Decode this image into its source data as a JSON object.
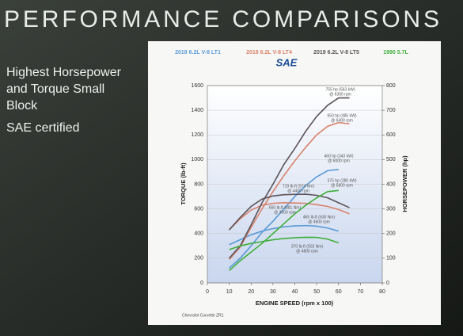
{
  "slide": {
    "title": "PERFORMANCE COMPARISONS",
    "bullets": [
      "Highest Horsepower",
      "and Torque Small",
      "Block",
      "SAE certified"
    ]
  },
  "chart_data": {
    "type": "line",
    "x_label": "ENGINE SPEED (rpm x 100)",
    "y_label": "TORQUE (lb-ft)",
    "y2_label": "HORSEPOWER (hp)",
    "logo": "SAE",
    "footnote": "Chevrolet Corvette ZR1",
    "x": [
      10,
      15,
      20,
      25,
      30,
      35,
      40,
      45,
      50,
      55,
      60,
      65
    ],
    "xlim": [
      0,
      80
    ],
    "xticks": [
      0,
      10,
      20,
      30,
      40,
      50,
      60,
      70,
      80
    ],
    "ylim": [
      0,
      1600
    ],
    "yticks": [
      0,
      200,
      400,
      600,
      800,
      1000,
      1200,
      1400,
      1600
    ],
    "y2lim": [
      0,
      800
    ],
    "y2ticks": [
      0,
      100,
      200,
      300,
      400,
      500,
      600,
      700,
      800
    ],
    "grid": true,
    "series": [
      {
        "name": "2018 6.2L V-8 LT1",
        "color": "#5a9ad6",
        "torque": [
          310,
          350,
          390,
          420,
          440,
          455,
          462,
          465,
          460,
          445,
          420,
          null
        ],
        "horsepower": [
          60,
          100,
          150,
          205,
          250,
          300,
          350,
          395,
          430,
          455,
          460,
          null
        ]
      },
      {
        "name": "2018 6.2L V-8 LT4",
        "color": "#d9826c",
        "torque": [
          430,
          520,
          590,
          630,
          645,
          650,
          648,
          645,
          635,
          620,
          595,
          560
        ],
        "horsepower": [
          95,
          145,
          225,
          300,
          370,
          435,
          495,
          550,
          600,
          635,
          650,
          645
        ]
      },
      {
        "name": "2019 6.2L V-8 LT5",
        "color": "#5a5358",
        "torque": [
          430,
          530,
          620,
          680,
          705,
          715,
          718,
          719,
          710,
          690,
          650,
          610
        ],
        "horsepower": [
          100,
          150,
          235,
          325,
          400,
          480,
          545,
          615,
          675,
          720,
          750,
          750
        ]
      },
      {
        "name": "1990 5.7L",
        "color": "#3fae3a",
        "torque": [
          270,
          300,
          320,
          335,
          350,
          360,
          366,
          370,
          369,
          355,
          325,
          null
        ],
        "horsepower": [
          50,
          90,
          125,
          160,
          200,
          240,
          280,
          315,
          345,
          370,
          375,
          null
        ]
      }
    ],
    "annotations": [
      [
        "755 hp (563 kW)",
        "@ 6300 rpm"
      ],
      [
        "650 hp (485 kW)",
        "@ 6400 rpm"
      ],
      [
        "460 hp (343 kW)",
        "@ 6000 rpm"
      ],
      [
        "375 hp (280 kW)",
        "@ 5800 rpm"
      ],
      [
        "719 lb-ft (974 Nm)",
        "@ 4400 rpm"
      ],
      [
        "650 lb-ft (881 Nm)",
        "@ 3600 rpm"
      ],
      [
        "465 lb-ft (630 Nm)",
        "@ 4600 rpm"
      ],
      [
        "370 lb-ft (502 Nm)",
        "@ 4800 rpm"
      ]
    ]
  }
}
